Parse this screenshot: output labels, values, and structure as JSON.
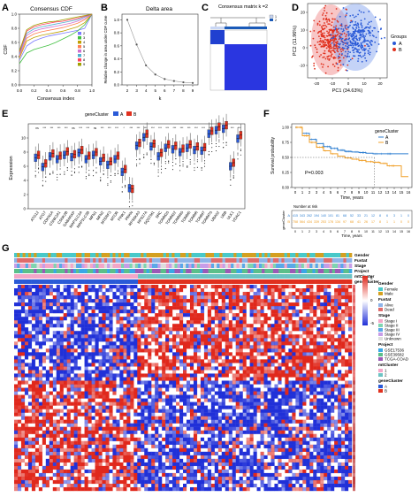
{
  "colors": {
    "group_a": "#2a5ad7",
    "group_b": "#e0301e",
    "survival_a": "#2f7fd0",
    "survival_b": "#f0a02a",
    "heat_high": "#e0281c",
    "heat_low": "#2030d8",
    "heat_mid": "#ffffff",
    "gender_female": "#48c9c9",
    "gender_male": "#d4a020",
    "fustat_alive": "#8db3e8",
    "fustat_dead": "#e06a6a",
    "project_gse17536": "#3aa7e6",
    "project_gse39582": "#5bbf8a",
    "project_tcga": "#9b59b6",
    "cluster1": "#f3a6c8",
    "cluster2": "#6cc3c3"
  },
  "panels": {
    "A": {
      "letter": "A",
      "title": "Consensus CDF",
      "xlabel": "Consensus index",
      "ylabel": "CDF",
      "xticks": [
        "0.0",
        "0.2",
        "0.4",
        "0.6",
        "0.8",
        "1.0"
      ],
      "yticks": [
        "0.0",
        "0.2",
        "0.4",
        "0.6",
        "0.8",
        "1.0"
      ],
      "legend": [
        "2",
        "3",
        "4",
        "5",
        "6",
        "7",
        "8",
        "9"
      ],
      "legend_colors": [
        "#7a7aff",
        "#40c040",
        "#c0a000",
        "#ff7f50",
        "#d070d0",
        "#50b0d0",
        "#ff4060",
        "#a0a000"
      ]
    },
    "B": {
      "letter": "B",
      "title": "Delta area",
      "xlabel": "k",
      "ylabel": "Relative change in area under CDF curve",
      "xticks": [
        "2",
        "3",
        "4",
        "5",
        "6",
        "7",
        "8",
        "9"
      ],
      "yticks": [
        "0.0",
        "0.2",
        "0.4",
        "0.6",
        "0.8",
        "1.0"
      ]
    },
    "C": {
      "letter": "C",
      "title": "Consensus matrix k =2",
      "legend": [
        "1",
        "2"
      ]
    },
    "D": {
      "letter": "D",
      "xlabel": "PC1 (34.63%)",
      "ylabel": "PC2 (11.96%)",
      "xticks": [
        "-20",
        "-10",
        "0",
        "10",
        "20"
      ],
      "yticks": [
        "-10",
        "0",
        "10",
        "20"
      ],
      "legend_title": "Groups",
      "legend": [
        "A",
        "B"
      ]
    },
    "E": {
      "letter": "E",
      "legend_title": "geneCluster",
      "legend": [
        "A",
        "B"
      ],
      "ylabel": "Expression",
      "yticks": [
        "0",
        "2",
        "4",
        "6",
        "8",
        "10"
      ],
      "significance": [
        "ns",
        "***",
        "***",
        "***",
        "***",
        "ns",
        "***",
        "***",
        "ns",
        "***",
        "***",
        "***",
        "*",
        "***",
        "***",
        "***",
        "***",
        "***",
        "***",
        "***",
        "***",
        "***",
        "***",
        "***",
        "***",
        "***",
        "***",
        "***",
        "***"
      ],
      "genes": [
        "ATG12",
        "ATG7",
        "CDKN1A",
        "CSNK2A1",
        "CSNK2B",
        "GABARAP",
        "MAP1LC3A",
        "MAP1LC3B",
        "MFN1",
        "MFN2",
        "MTERF3",
        "MTOR",
        "PINK1",
        "PRKN",
        "RPS6KA3",
        "RPS27A",
        "SQSTM1",
        "SRC",
        "TOMM20",
        "TOMM22",
        "TOMM40",
        "TOMM5",
        "TOMM6",
        "TOMM7",
        "TOMM70",
        "UBA52",
        "UBB",
        "ULK1",
        "VDAC1"
      ]
    },
    "F": {
      "letter": "F",
      "legend_title": "geneCluster",
      "legend": [
        "A",
        "B"
      ],
      "ylabel": "Survival probability",
      "xlabel": "Time, years",
      "pvalue": "P=0.003",
      "yticks": [
        "0.00",
        "0.25",
        "0.50",
        "0.75",
        "1.00"
      ],
      "xticks": [
        "0",
        "1",
        "2",
        "3",
        "4",
        "5",
        "6",
        "7",
        "8",
        "9",
        "10",
        "11",
        "12",
        "13",
        "14",
        "15",
        "16"
      ],
      "risk_title": "Number at risk",
      "risk_ylabel": "geneCluster",
      "risk_labels": [
        "A",
        "B"
      ],
      "risk_A": [
        "415",
        "343",
        "262",
        "194",
        "140",
        "101",
        "81",
        "68",
        "52",
        "33",
        "21",
        "12",
        "8",
        "6",
        "3",
        "1",
        "0"
      ],
      "risk_B": [
        "758",
        "564",
        "434",
        "339",
        "253",
        "178",
        "134",
        "97",
        "68",
        "41",
        "26",
        "17",
        "8",
        "1",
        "1",
        "0",
        "0"
      ],
      "risk_xlabel": "Time, years"
    },
    "G": {
      "letter": "G",
      "track_labels": [
        "Gender",
        "Fustat",
        "Stage",
        "Project",
        "mtCluster",
        "geneCluster"
      ],
      "colorbar_ticks": [
        "5",
        "0",
        "-5"
      ],
      "legends": [
        {
          "title": "Gender",
          "items": [
            "Female",
            "Male"
          ]
        },
        {
          "title": "Fustat",
          "items": [
            "Alive",
            "Dead"
          ]
        },
        {
          "title": "Stage",
          "items": [
            "Stage I",
            "Stage II",
            "Stage III",
            "Stage IV",
            "Unknown"
          ]
        },
        {
          "title": "Project",
          "items": [
            "GSE17536",
            "GSE39582",
            "TCGA-COAD"
          ]
        },
        {
          "title": "mtCluster",
          "items": [
            "1",
            "2"
          ]
        },
        {
          "title": "geneCluster",
          "items": [
            "A",
            "B"
          ]
        }
      ]
    }
  },
  "chart_data": [
    {
      "type": "line",
      "title": "Consensus CDF",
      "xlabel": "Consensus index",
      "ylabel": "CDF",
      "xlim": [
        0,
        1
      ],
      "ylim": [
        0,
        1
      ],
      "x": [
        0,
        0.1,
        0.2,
        0.3,
        0.4,
        0.5,
        0.6,
        0.7,
        0.8,
        0.9,
        1.0
      ],
      "series": [
        {
          "name": "2",
          "values": [
            0.35,
            0.55,
            0.62,
            0.66,
            0.69,
            0.71,
            0.73,
            0.75,
            0.77,
            0.8,
            1.0
          ]
        },
        {
          "name": "3",
          "values": [
            0.3,
            0.45,
            0.5,
            0.53,
            0.56,
            0.6,
            0.65,
            0.7,
            0.76,
            0.85,
            1.0
          ]
        },
        {
          "name": "4",
          "values": [
            0.38,
            0.62,
            0.67,
            0.7,
            0.72,
            0.74,
            0.76,
            0.79,
            0.82,
            0.88,
            1.0
          ]
        },
        {
          "name": "5",
          "values": [
            0.4,
            0.66,
            0.72,
            0.75,
            0.77,
            0.79,
            0.81,
            0.84,
            0.87,
            0.92,
            1.0
          ]
        },
        {
          "name": "6",
          "values": [
            0.42,
            0.7,
            0.76,
            0.79,
            0.81,
            0.83,
            0.85,
            0.87,
            0.9,
            0.94,
            1.0
          ]
        },
        {
          "name": "7",
          "values": [
            0.44,
            0.73,
            0.79,
            0.82,
            0.84,
            0.86,
            0.88,
            0.9,
            0.92,
            0.96,
            1.0
          ]
        },
        {
          "name": "8",
          "values": [
            0.46,
            0.76,
            0.82,
            0.85,
            0.87,
            0.89,
            0.9,
            0.92,
            0.94,
            0.97,
            1.0
          ]
        },
        {
          "name": "9",
          "values": [
            0.48,
            0.78,
            0.84,
            0.87,
            0.89,
            0.9,
            0.92,
            0.94,
            0.96,
            0.98,
            1.0
          ]
        }
      ]
    },
    {
      "type": "line",
      "title": "Delta area",
      "xlabel": "k",
      "ylabel": "Relative change in area under CDF curve",
      "categories": [
        "2",
        "3",
        "4",
        "5",
        "6",
        "7",
        "8",
        "9"
      ],
      "values": [
        1.0,
        0.62,
        0.3,
        0.16,
        0.09,
        0.06,
        0.04,
        0.03
      ],
      "ylim": [
        0,
        1
      ]
    },
    {
      "type": "bar",
      "categories": [
        "ATG12",
        "ATG7",
        "CDKN1A",
        "CSNK2A1",
        "CSNK2B",
        "GABARAP",
        "MAP1LC3A",
        "MAP1LC3B",
        "MFN1",
        "MFN2",
        "MTERF3",
        "MTOR",
        "PINK1",
        "PRKN",
        "RPS6KA3",
        "RPS27A",
        "SQSTM1",
        "SRC",
        "TOMM20",
        "TOMM22",
        "TOMM40",
        "TOMM5",
        "TOMM6",
        "TOMM7",
        "TOMM70",
        "UBA52",
        "UBB",
        "ULK1",
        "VDAC1"
      ],
      "ylabel": "Expression",
      "ylim": [
        0,
        12
      ],
      "series": [
        {
          "name": "A",
          "values": [
            7.2,
            5.9,
            7.4,
            7.0,
            7.6,
            7.3,
            7.9,
            7.0,
            7.6,
            6.7,
            6.2,
            7.0,
            5.2,
            2.9,
            8.9,
            10.1,
            8.8,
            7.4,
            8.6,
            8.4,
            8.0,
            8.6,
            8.3,
            8.2,
            10.6,
            11.1,
            11.3,
            6.0,
            9.9
          ]
        },
        {
          "name": "B",
          "values": [
            7.6,
            6.4,
            7.8,
            7.5,
            8.1,
            7.7,
            8.3,
            7.5,
            8.0,
            7.2,
            6.7,
            7.5,
            5.6,
            2.8,
            9.3,
            10.6,
            9.2,
            7.9,
            9.1,
            8.9,
            8.5,
            9.1,
            8.8,
            8.7,
            11.0,
            11.6,
            11.8,
            6.5,
            10.4
          ]
        }
      ]
    },
    {
      "type": "line",
      "title": "",
      "xlabel": "Time, years",
      "ylabel": "Survival probability",
      "xlim": [
        0,
        16
      ],
      "ylim": [
        0,
        1
      ],
      "x": [
        0,
        1,
        2,
        3,
        4,
        5,
        6,
        7,
        8,
        9,
        10,
        11,
        12,
        13,
        14,
        15,
        16
      ],
      "series": [
        {
          "name": "A",
          "values": [
            1.0,
            0.9,
            0.8,
            0.73,
            0.68,
            0.65,
            0.62,
            0.6,
            0.59,
            0.58,
            0.57,
            0.56,
            0.56,
            0.56,
            0.56,
            0.56,
            0.56
          ]
        },
        {
          "name": "B",
          "values": [
            1.0,
            0.86,
            0.75,
            0.67,
            0.61,
            0.56,
            0.52,
            0.49,
            0.47,
            0.45,
            0.43,
            0.42,
            0.4,
            0.36,
            0.36,
            0.18,
            0.18
          ]
        }
      ]
    }
  ]
}
